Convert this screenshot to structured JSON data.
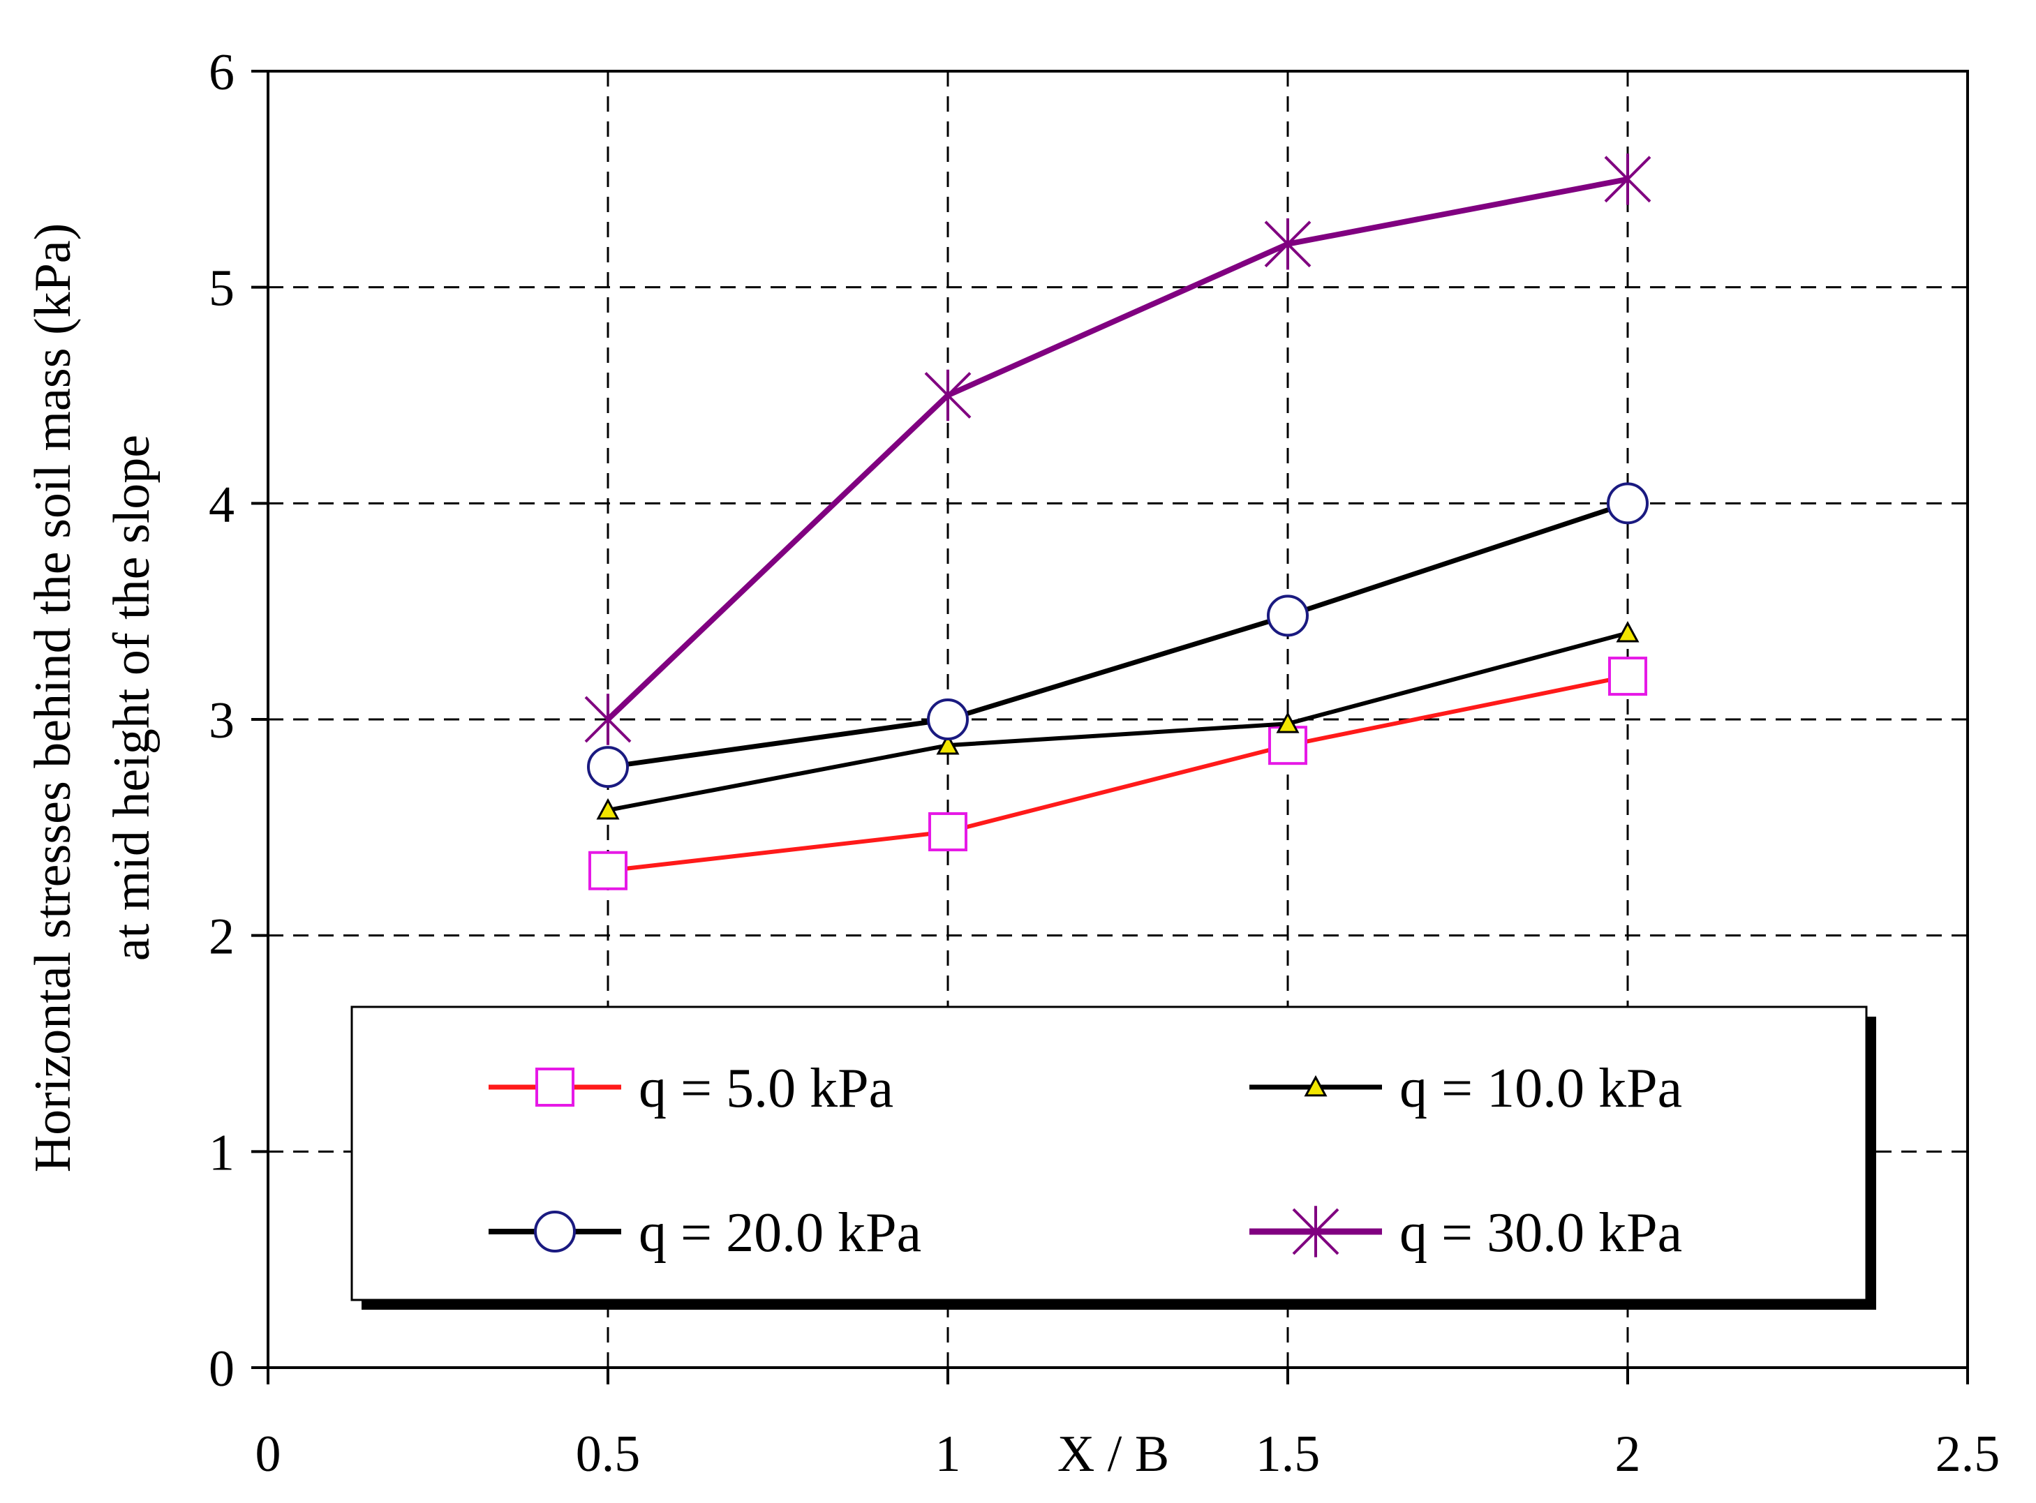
{
  "chart_data": {
    "type": "line",
    "title": "",
    "xlabel": "X / B",
    "ylabel_line1": "Horizontal stresses behind the soil mass (kPa)",
    "ylabel_line2": "at mid height of the slope",
    "xlim": [
      0,
      2.5
    ],
    "ylim": [
      0,
      6
    ],
    "x_ticks": [
      "0",
      "0.5",
      "1",
      "1.5",
      "2",
      "2.5"
    ],
    "y_ticks": [
      "0",
      "1",
      "2",
      "3",
      "4",
      "5",
      "6"
    ],
    "grid": "dashed",
    "legend_position": "bottom-center",
    "x": [
      0.5,
      1,
      1.5,
      2
    ],
    "series": [
      {
        "name": "q = 5.0 kPa",
        "values": [
          2.3,
          2.48,
          2.88,
          3.2
        ],
        "line_color": "#ff1a1a",
        "marker": "square",
        "marker_color": "#e619e6"
      },
      {
        "name": "q = 10.0 kPa",
        "values": [
          2.58,
          2.88,
          2.98,
          3.4
        ],
        "line_color": "#000000",
        "marker": "triangle",
        "marker_color": "#f2e600"
      },
      {
        "name": "q = 20.0 kPa",
        "values": [
          2.78,
          3.0,
          3.48,
          4.0
        ],
        "line_color": "#000000",
        "marker": "circle",
        "marker_color": "#1a1a80"
      },
      {
        "name": "q = 30.0 kPa",
        "values": [
          3.0,
          4.5,
          5.2,
          5.5
        ],
        "line_color": "#800080",
        "marker": "star",
        "marker_color": "#800080"
      }
    ]
  }
}
